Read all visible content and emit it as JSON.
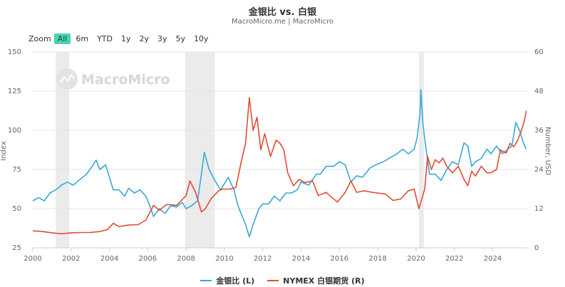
{
  "header": {
    "title": "金银比 vs. 白银",
    "subtitle": "MacroMicro.me | MacroMicro"
  },
  "zoom": {
    "label": "Zoom",
    "buttons": [
      "All",
      "6m",
      "YTD",
      "1y",
      "2y",
      "3y",
      "5y",
      "10y"
    ],
    "active": "All"
  },
  "watermark": "MacroMicro",
  "colors": {
    "ratio": "#3aa8d6",
    "silver": "#e24b36",
    "grid": "#e6e6e6",
    "band": "#ebebeb",
    "active": "#47d6b0"
  },
  "chart_data": {
    "type": "line",
    "x_ticks": [
      "2000",
      "2002",
      "2004",
      "2006",
      "2008",
      "2010",
      "2012",
      "2014",
      "2016",
      "2018",
      "2020",
      "2022",
      "2024"
    ],
    "x_range": [
      2000,
      2025.8
    ],
    "y_left": {
      "label": "Index",
      "range": [
        25,
        150
      ],
      "ticks": [
        "25",
        "50",
        "75",
        "100",
        "125",
        "150"
      ]
    },
    "y_right": {
      "label": "Number, USD",
      "range": [
        0,
        60
      ],
      "ticks": [
        "0",
        "12",
        "24",
        "36",
        "48",
        "60"
      ]
    },
    "recession_bands": [
      [
        2001.2,
        2001.9
      ],
      [
        2007.95,
        2009.5
      ],
      [
        2020.15,
        2020.4
      ]
    ],
    "grid": true,
    "legend_position": "bottom",
    "series": [
      {
        "name": "金银比 (L)",
        "axis": "left",
        "points": [
          [
            2000.0,
            55
          ],
          [
            2000.3,
            57
          ],
          [
            2000.6,
            55
          ],
          [
            2000.9,
            60
          ],
          [
            2001.2,
            62
          ],
          [
            2001.5,
            65
          ],
          [
            2001.8,
            67
          ],
          [
            2002.1,
            65
          ],
          [
            2002.4,
            68
          ],
          [
            2002.8,
            72
          ],
          [
            2003.1,
            77
          ],
          [
            2003.3,
            81
          ],
          [
            2003.5,
            75
          ],
          [
            2003.8,
            78
          ],
          [
            2004.0,
            70
          ],
          [
            2004.2,
            62
          ],
          [
            2004.5,
            62
          ],
          [
            2004.8,
            58
          ],
          [
            2005.0,
            63
          ],
          [
            2005.3,
            60
          ],
          [
            2005.6,
            62
          ],
          [
            2005.9,
            58
          ],
          [
            2006.1,
            52
          ],
          [
            2006.3,
            45
          ],
          [
            2006.6,
            50
          ],
          [
            2006.9,
            47
          ],
          [
            2007.2,
            52
          ],
          [
            2007.5,
            51
          ],
          [
            2007.8,
            54
          ],
          [
            2008.0,
            50
          ],
          [
            2008.3,
            52
          ],
          [
            2008.6,
            55
          ],
          [
            2008.8,
            72
          ],
          [
            2008.95,
            86
          ],
          [
            2009.2,
            75
          ],
          [
            2009.5,
            68
          ],
          [
            2009.8,
            62
          ],
          [
            2010.0,
            66
          ],
          [
            2010.2,
            70
          ],
          [
            2010.5,
            62
          ],
          [
            2010.7,
            52
          ],
          [
            2010.9,
            46
          ],
          [
            2011.1,
            40
          ],
          [
            2011.3,
            32
          ],
          [
            2011.5,
            40
          ],
          [
            2011.8,
            50
          ],
          [
            2012.0,
            53
          ],
          [
            2012.3,
            53
          ],
          [
            2012.6,
            58
          ],
          [
            2012.9,
            55
          ],
          [
            2013.2,
            60
          ],
          [
            2013.5,
            60
          ],
          [
            2013.8,
            62
          ],
          [
            2014.0,
            67
          ],
          [
            2014.4,
            65
          ],
          [
            2014.8,
            72
          ],
          [
            2015.0,
            72
          ],
          [
            2015.3,
            77
          ],
          [
            2015.7,
            77
          ],
          [
            2016.0,
            80
          ],
          [
            2016.3,
            78
          ],
          [
            2016.6,
            67
          ],
          [
            2016.9,
            71
          ],
          [
            2017.2,
            70
          ],
          [
            2017.6,
            76
          ],
          [
            2017.9,
            78
          ],
          [
            2018.3,
            80
          ],
          [
            2018.7,
            83
          ],
          [
            2019.0,
            85
          ],
          [
            2019.3,
            88
          ],
          [
            2019.6,
            85
          ],
          [
            2019.9,
            88
          ],
          [
            2020.05,
            95
          ],
          [
            2020.2,
            110
          ],
          [
            2020.25,
            126
          ],
          [
            2020.35,
            105
          ],
          [
            2020.5,
            90
          ],
          [
            2020.7,
            72
          ],
          [
            2021.0,
            72
          ],
          [
            2021.3,
            68
          ],
          [
            2021.6,
            75
          ],
          [
            2021.9,
            80
          ],
          [
            2022.2,
            78
          ],
          [
            2022.5,
            92
          ],
          [
            2022.7,
            90
          ],
          [
            2022.9,
            77
          ],
          [
            2023.1,
            80
          ],
          [
            2023.4,
            82
          ],
          [
            2023.7,
            88
          ],
          [
            2023.9,
            85
          ],
          [
            2024.2,
            90
          ],
          [
            2024.5,
            85
          ],
          [
            2024.8,
            88
          ],
          [
            2025.0,
            90
          ],
          [
            2025.2,
            105
          ],
          [
            2025.4,
            100
          ],
          [
            2025.6,
            92
          ],
          [
            2025.75,
            88
          ]
        ]
      },
      {
        "name": "NYMEX 白银期货 (R)",
        "axis": "right",
        "points": [
          [
            2000.0,
            5.2
          ],
          [
            2000.5,
            5.0
          ],
          [
            2001.0,
            4.6
          ],
          [
            2001.5,
            4.3
          ],
          [
            2002.0,
            4.6
          ],
          [
            2002.5,
            4.7
          ],
          [
            2003.0,
            4.7
          ],
          [
            2003.5,
            5.0
          ],
          [
            2003.9,
            5.6
          ],
          [
            2004.2,
            7.5
          ],
          [
            2004.5,
            6.5
          ],
          [
            2005.0,
            7.0
          ],
          [
            2005.5,
            7.1
          ],
          [
            2005.9,
            8.5
          ],
          [
            2006.3,
            13.0
          ],
          [
            2006.6,
            11.5
          ],
          [
            2007.0,
            13.3
          ],
          [
            2007.5,
            13.0
          ],
          [
            2008.0,
            16.0
          ],
          [
            2008.2,
            20.5
          ],
          [
            2008.5,
            17.0
          ],
          [
            2008.8,
            11.0
          ],
          [
            2009.0,
            12.0
          ],
          [
            2009.3,
            15.0
          ],
          [
            2009.7,
            17.5
          ],
          [
            2009.9,
            18.0
          ],
          [
            2010.3,
            18.0
          ],
          [
            2010.6,
            18.5
          ],
          [
            2010.9,
            27.0
          ],
          [
            2011.1,
            32.0
          ],
          [
            2011.3,
            46.0
          ],
          [
            2011.5,
            36.0
          ],
          [
            2011.7,
            40.0
          ],
          [
            2011.9,
            30.0
          ],
          [
            2012.1,
            35.0
          ],
          [
            2012.4,
            28.0
          ],
          [
            2012.7,
            33.0
          ],
          [
            2012.9,
            32.0
          ],
          [
            2013.1,
            30.0
          ],
          [
            2013.3,
            23.0
          ],
          [
            2013.6,
            19.0
          ],
          [
            2013.9,
            21.0
          ],
          [
            2014.2,
            20.0
          ],
          [
            2014.6,
            20.5
          ],
          [
            2014.9,
            16.0
          ],
          [
            2015.3,
            17.0
          ],
          [
            2015.7,
            15.0
          ],
          [
            2015.9,
            14.0
          ],
          [
            2016.3,
            17.0
          ],
          [
            2016.6,
            20.5
          ],
          [
            2016.9,
            17.0
          ],
          [
            2017.3,
            17.5
          ],
          [
            2017.7,
            17.0
          ],
          [
            2018.0,
            16.8
          ],
          [
            2018.4,
            16.5
          ],
          [
            2018.8,
            14.5
          ],
          [
            2019.2,
            15.0
          ],
          [
            2019.6,
            17.5
          ],
          [
            2019.9,
            18.0
          ],
          [
            2020.15,
            12.0
          ],
          [
            2020.25,
            14.0
          ],
          [
            2020.45,
            18.0
          ],
          [
            2020.6,
            28.0
          ],
          [
            2020.8,
            24.0
          ],
          [
            2021.0,
            27.0
          ],
          [
            2021.2,
            26.0
          ],
          [
            2021.4,
            27.5
          ],
          [
            2021.6,
            25.0
          ],
          [
            2021.9,
            23.0
          ],
          [
            2022.2,
            25.0
          ],
          [
            2022.5,
            21.0
          ],
          [
            2022.7,
            19.0
          ],
          [
            2022.9,
            23.5
          ],
          [
            2023.1,
            22.0
          ],
          [
            2023.4,
            25.0
          ],
          [
            2023.7,
            23.0
          ],
          [
            2023.9,
            23.0
          ],
          [
            2024.2,
            24.0
          ],
          [
            2024.4,
            30.0
          ],
          [
            2024.7,
            29.0
          ],
          [
            2024.9,
            32.0
          ],
          [
            2025.1,
            31.0
          ],
          [
            2025.3,
            33.0
          ],
          [
            2025.5,
            36.0
          ],
          [
            2025.65,
            39.0
          ],
          [
            2025.75,
            42.0
          ]
        ]
      }
    ]
  }
}
